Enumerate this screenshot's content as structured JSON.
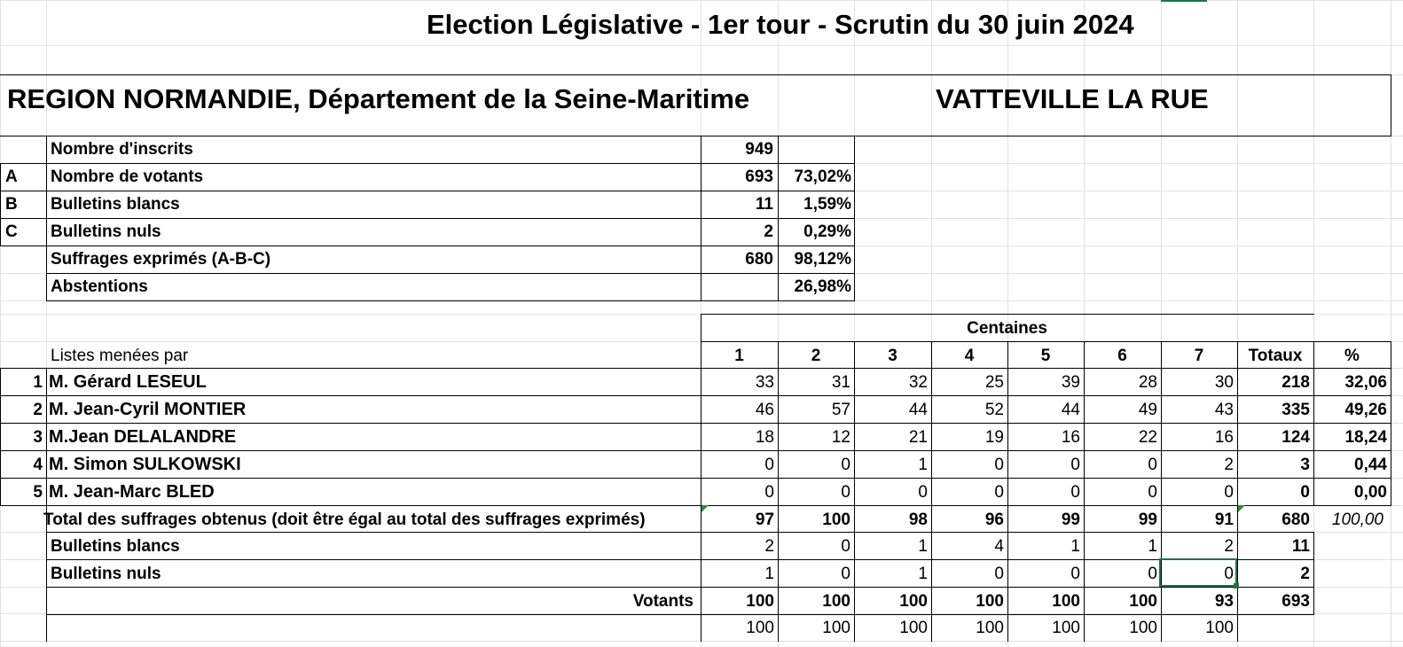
{
  "title": "Election Législative  - 1er tour - Scrutin du 30 juin 2024",
  "region": "REGION NORMANDIE, Département de la Seine-Maritime",
  "commune": "VATTEVILLE LA RUE",
  "summary": [
    {
      "code": "",
      "label": "Nombre d'inscrits",
      "count": "949",
      "pct": ""
    },
    {
      "code": "A",
      "label": "Nombre de votants",
      "count": "693",
      "pct": "73,02%"
    },
    {
      "code": "B",
      "label": "Bulletins blancs",
      "count": "11",
      "pct": "1,59%"
    },
    {
      "code": "C",
      "label": "Bulletins nuls",
      "count": "2",
      "pct": "0,29%"
    },
    {
      "code": "",
      "label": "Suffrages exprimés (A-B-C)",
      "count": "680",
      "pct": "98,12%"
    },
    {
      "code": "",
      "label": "Abstentions",
      "count": "",
      "pct": "26,98%"
    }
  ],
  "results": {
    "group_header": "Centaines",
    "lists_label": "Listes menées par",
    "columns": [
      "1",
      "2",
      "3",
      "4",
      "5",
      "6",
      "7",
      "Totaux",
      "%"
    ],
    "candidates": [
      {
        "num": "1",
        "name": "M. Gérard LESEUL",
        "values": [
          "33",
          "31",
          "32",
          "25",
          "39",
          "28",
          "30"
        ],
        "total": "218",
        "pct": "32,06"
      },
      {
        "num": "2",
        "name": "M. Jean-Cyril MONTIER",
        "values": [
          "46",
          "57",
          "44",
          "52",
          "44",
          "49",
          "43"
        ],
        "total": "335",
        "pct": "49,26"
      },
      {
        "num": "3",
        "name": "M.Jean DELALANDRE",
        "values": [
          "18",
          "12",
          "21",
          "19",
          "16",
          "22",
          "16"
        ],
        "total": "124",
        "pct": "18,24"
      },
      {
        "num": "4",
        "name": "M. Simon SULKOWSKI",
        "values": [
          "0",
          "0",
          "1",
          "0",
          "0",
          "0",
          "2"
        ],
        "total": "3",
        "pct": "0,44"
      },
      {
        "num": "5",
        "name": "M. Jean-Marc BLED",
        "values": [
          "0",
          "0",
          "0",
          "0",
          "0",
          "0",
          "0"
        ],
        "total": "0",
        "pct": "0,00"
      }
    ],
    "total_row": {
      "label": "Total des suffrages obtenus (doit être égal au total des suffrages exprimés)",
      "values": [
        "97",
        "100",
        "98",
        "96",
        "99",
        "99",
        "91"
      ],
      "total": "680",
      "pct": "100,00"
    },
    "blancs_row": {
      "label": "Bulletins blancs",
      "values": [
        "2",
        "0",
        "1",
        "4",
        "1",
        "1",
        "2"
      ],
      "total": "11"
    },
    "nuls_row": {
      "label": "Bulletins nuls",
      "values": [
        "1",
        "0",
        "1",
        "0",
        "0",
        "0",
        "0"
      ],
      "total": "2"
    },
    "votants_row": {
      "label": "Votants",
      "values": [
        "100",
        "100",
        "100",
        "100",
        "100",
        "100",
        "93"
      ],
      "total": "693"
    },
    "check_row": {
      "values": [
        "100",
        "100",
        "100",
        "100",
        "100",
        "100",
        "100"
      ]
    }
  },
  "colors": {
    "gridline": "#e1e1e1",
    "selection": "#217346",
    "error_indicator": "#2e8b3a"
  }
}
